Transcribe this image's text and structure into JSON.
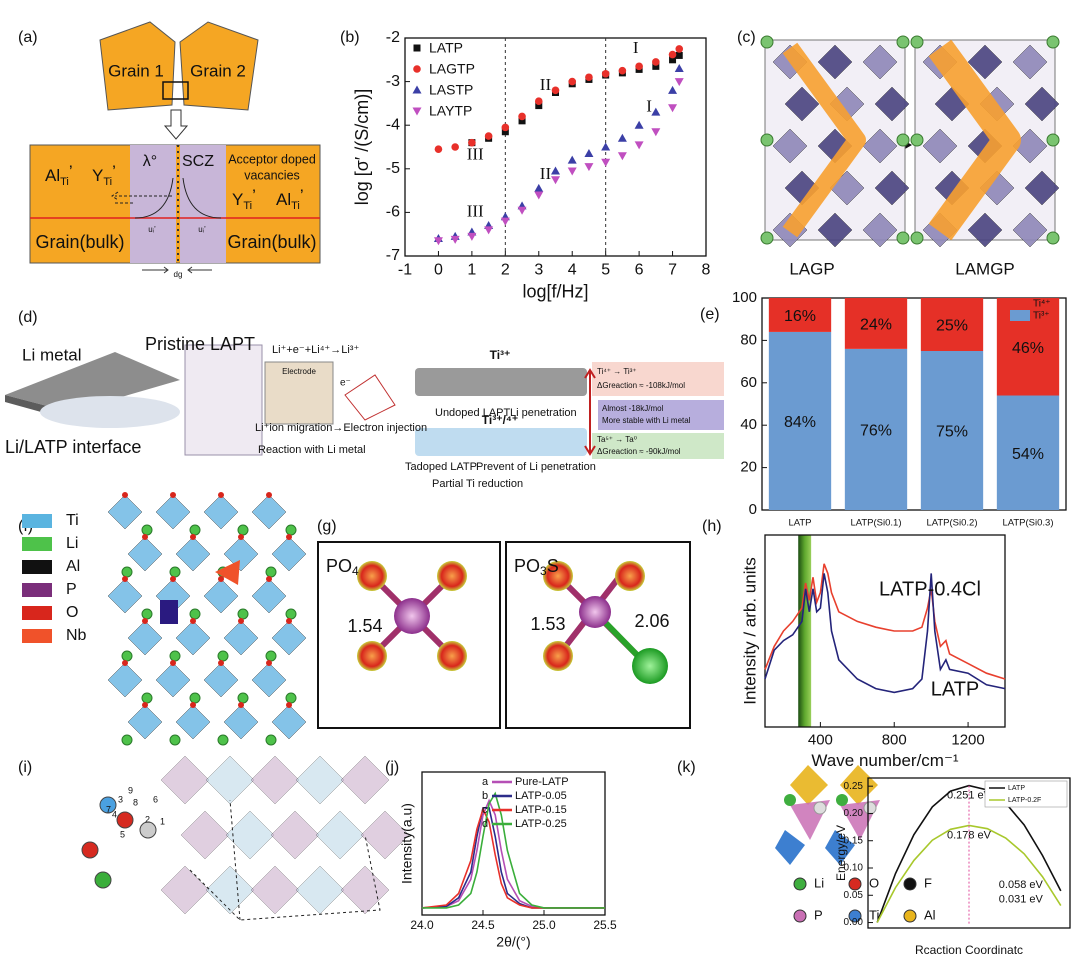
{
  "panel_labels": [
    "(a)",
    "(b)",
    "(c)",
    "(d)",
    "(e)",
    "(f)",
    "(g)",
    "(h)",
    "(i)",
    "(j)",
    "(k)"
  ],
  "panel_a": {
    "grain_1": "Grain 1",
    "grain_2": "Grain 2",
    "scz": "SCZ",
    "acceptor": [
      "Acceptor doped",
      "vacancies"
    ],
    "al_left": {
      "base": "Al",
      "sub": "Ti",
      "sup": "’"
    },
    "y_left": {
      "base": "Y",
      "sub": "Ti",
      "sup": "’"
    },
    "lambda": "λ°",
    "y_right": {
      "base": "Y",
      "sub": "Ti",
      "sup": "’"
    },
    "al_right": {
      "base": "Al",
      "sub": "Ti",
      "sup": "’"
    },
    "bulk_left": "Grain(bulk)",
    "bulk_right": "Grain(bulk)",
    "u_left": "uᵢ’",
    "u_right": "uᵢ’",
    "dg": "dg"
  },
  "panel_c": {
    "left": "LAGP",
    "right": "LAMGP"
  },
  "panel_d": {
    "li_metal": "Li metal",
    "pristine": "Pristine LAPT",
    "interface": "Li/LATP interface",
    "reaction": "Li⁺+e⁻+Li⁴⁺→Li³⁺",
    "electrode": "Electrode",
    "electron": "e⁻",
    "undoped": "Undoped LAPT",
    "li_penetration": "Li penetration",
    "migration": "Li⁺ion migration→Electron injection",
    "reaction_li": "Reaction with Li metal",
    "tadoped": "Tadoped LATP",
    "prevent": "Prevent of Li penetration",
    "partial": "Partial Ti reduction",
    "ti3": "Ti³⁺",
    "ti34": "Ti³⁺/⁴⁺",
    "box_top": [
      "Ti⁴⁺ → Ti³⁺",
      "ΔGreaction ≈ -108kJ/mol"
    ],
    "box_mid": [
      "Almost -18kJ/mol",
      "More stable with Li metal"
    ],
    "box_bottom": [
      "Ta⁵⁺ → Ta⁰",
      "ΔGreaction ≈ -90kJ/mol"
    ]
  },
  "panel_f": {
    "legend": [
      {
        "name": "Ti",
        "color": "#5ab4e0"
      },
      {
        "name": "Li",
        "color": "#4ec24a"
      },
      {
        "name": "Al",
        "color": "#111111"
      },
      {
        "name": "P",
        "color": "#7a2e7a"
      },
      {
        "name": "O",
        "color": "#d8261c"
      },
      {
        "name": "Nb",
        "color": "#f0522a"
      }
    ]
  },
  "panel_g": {
    "left": {
      "formula": "PO",
      "sub": "4",
      "bond": "1.54"
    },
    "right": {
      "formula": "PO",
      "sub": "3",
      "tail": "S",
      "bonds": [
        "1.53",
        "2.06"
      ]
    }
  },
  "panel_i": {
    "site_labels": [
      "1",
      "2",
      "3",
      "4",
      "5",
      "6",
      "7",
      "8",
      "9"
    ]
  },
  "panel_k": {
    "legend": [
      {
        "name": "Li",
        "color": "#3fae3f"
      },
      {
        "name": "O",
        "color": "#d62a20"
      },
      {
        "name": "F",
        "color": "#111111"
      },
      {
        "name": "P",
        "color": "#c96fb4"
      },
      {
        "name": "Ti",
        "color": "#3d7fd0"
      },
      {
        "name": "Al",
        "color": "#e8b41c"
      }
    ]
  },
  "chart_data": [
    {
      "type": "scatter",
      "x_label": "log[f/Hz]",
      "y_label": "log [σ′ /(S/cm)]",
      "x": [
        0,
        0.5,
        1,
        1.5,
        2,
        2.5,
        3,
        3.5,
        4,
        4.5,
        5,
        5.5,
        6,
        6.5,
        7,
        7.2
      ],
      "series": [
        {
          "name": "LATP",
          "color": "#111111",
          "marker": "square",
          "values": [
            null,
            null,
            -4.4,
            -4.3,
            -4.15,
            -3.9,
            -3.55,
            -3.25,
            -3.05,
            -2.95,
            -2.85,
            -2.8,
            -2.72,
            -2.65,
            -2.5,
            -2.4
          ]
        },
        {
          "name": "LAGTP",
          "color": "#e8302a",
          "marker": "circle",
          "values": [
            -4.55,
            -4.5,
            -4.4,
            -4.25,
            -4.05,
            -3.8,
            -3.45,
            -3.2,
            -3.0,
            -2.9,
            -2.82,
            -2.75,
            -2.65,
            -2.55,
            -2.38,
            -2.25
          ]
        },
        {
          "name": "LASTP",
          "color": "#3b3fa6",
          "marker": "triangle-up",
          "values": [
            -6.6,
            -6.55,
            -6.45,
            -6.3,
            -6.1,
            -5.85,
            -5.45,
            -5.05,
            -4.8,
            -4.65,
            -4.5,
            -4.3,
            -4.0,
            -3.7,
            -3.2,
            -2.7
          ]
        },
        {
          "name": "LAYTP",
          "color": "#c04fc0",
          "marker": "triangle-down",
          "values": [
            -6.65,
            -6.62,
            -6.55,
            -6.4,
            -6.2,
            -5.95,
            -5.6,
            -5.25,
            -5.05,
            -4.95,
            -4.85,
            -4.7,
            -4.45,
            -4.15,
            -3.6,
            -3.0
          ]
        }
      ],
      "xlim": [
        -1,
        8
      ],
      "xticks": [
        -1,
        0,
        1,
        2,
        3,
        4,
        5,
        6,
        7,
        8
      ],
      "ylim": [
        -7,
        -2
      ],
      "yticks": [
        -7,
        -6,
        -5,
        -4,
        -3,
        -2
      ],
      "vlines": [
        2,
        5
      ],
      "annotations": [
        {
          "text": "I",
          "x": 5.9,
          "y": -2.25
        },
        {
          "text": "II",
          "x": 3.2,
          "y": -3.1
        },
        {
          "text": "III",
          "x": 1.1,
          "y": -4.7
        },
        {
          "text": "I",
          "x": 6.3,
          "y": -3.6
        },
        {
          "text": "II",
          "x": 3.2,
          "y": -5.15
        },
        {
          "text": "III",
          "x": 1.1,
          "y": -6.0
        }
      ],
      "legend": "upper left"
    },
    {
      "type": "bar",
      "stacked": true,
      "categories": [
        "LATP",
        "LATP(Si0.1)",
        "LATP(Si0.2)",
        "LATP(Si0.3)"
      ],
      "series": [
        {
          "name": "Ti⁴⁺",
          "color": "#e53027",
          "values": [
            16,
            24,
            25,
            46
          ],
          "value_labels": [
            "16%",
            "24%",
            "25%",
            "46%"
          ]
        },
        {
          "name": "Ti³⁺",
          "color": "#6b9bd1",
          "values": [
            84,
            76,
            75,
            54
          ],
          "value_labels": [
            "84%",
            "76%",
            "75%",
            "54%"
          ]
        }
      ],
      "ylim": [
        0,
        100
      ],
      "yticks": [
        0,
        20,
        40,
        60,
        80,
        100
      ],
      "legend": "upper right"
    },
    {
      "type": "line",
      "x_label": "Wave number/cm⁻¹",
      "y_label": "Intensity / arb. units",
      "x": [
        100,
        150,
        200,
        250,
        300,
        320,
        340,
        360,
        380,
        400,
        420,
        440,
        460,
        500,
        600,
        700,
        800,
        900,
        950,
        980,
        1000,
        1020,
        1050,
        1080,
        1100,
        1200,
        1300,
        1400
      ],
      "series": [
        {
          "name": "LATP-0.4Cl",
          "color": "#e8402e",
          "values": [
            0.3,
            0.42,
            0.5,
            0.55,
            0.62,
            0.75,
            0.66,
            0.78,
            0.65,
            0.7,
            0.85,
            0.8,
            0.7,
            0.6,
            0.55,
            0.52,
            0.5,
            0.5,
            0.52,
            0.62,
            0.72,
            0.55,
            0.42,
            0.45,
            0.38,
            0.33,
            0.28,
            0.25
          ]
        },
        {
          "name": "LATP",
          "color": "#24247a",
          "values": [
            0.25,
            0.4,
            0.45,
            0.48,
            0.55,
            0.72,
            0.6,
            0.72,
            0.6,
            0.62,
            0.8,
            0.7,
            0.5,
            0.35,
            0.25,
            0.2,
            0.18,
            0.2,
            0.25,
            0.5,
            0.8,
            0.5,
            0.3,
            0.35,
            0.3,
            0.28,
            0.22,
            0.2
          ]
        }
      ],
      "xlim": [
        100,
        1400
      ],
      "xticks": [
        400,
        800,
        1200
      ],
      "ylim": [
        0,
        1
      ],
      "band": [
        280,
        350
      ],
      "legend": "inline"
    },
    {
      "type": "line",
      "x_label": "2θ/(°)",
      "y_label": "Intensity(a.u)",
      "x": [
        24.0,
        24.2,
        24.3,
        24.4,
        24.45,
        24.5,
        24.55,
        24.6,
        24.65,
        24.7,
        24.8,
        24.9,
        25.0,
        25.5
      ],
      "series": [
        {
          "name": "Pure-LATP",
          "letter": "a",
          "color": "#b54fb5",
          "values": [
            0.05,
            0.06,
            0.1,
            0.25,
            0.45,
            0.7,
            0.8,
            0.7,
            0.45,
            0.25,
            0.1,
            0.06,
            0.05,
            0.05
          ]
        },
        {
          "name": "LATP-0.05",
          "letter": "b",
          "color": "#2c2c8a",
          "values": [
            0.05,
            0.06,
            0.12,
            0.3,
            0.55,
            0.75,
            0.75,
            0.55,
            0.3,
            0.15,
            0.08,
            0.05,
            0.05,
            0.05
          ]
        },
        {
          "name": "LATP-0.15",
          "letter": "c",
          "color": "#e8302a",
          "values": [
            0.05,
            0.07,
            0.15,
            0.38,
            0.6,
            0.74,
            0.65,
            0.42,
            0.22,
            0.12,
            0.07,
            0.05,
            0.05,
            0.05
          ]
        },
        {
          "name": "LATP-0.25",
          "letter": "d",
          "color": "#3aae3a",
          "values": [
            0.05,
            0.05,
            0.07,
            0.15,
            0.3,
            0.55,
            0.78,
            0.85,
            0.7,
            0.45,
            0.15,
            0.07,
            0.05,
            0.05
          ]
        }
      ],
      "xlim": [
        24.0,
        25.5
      ],
      "xticks": [
        {
          "value": 24.0,
          "label": "24.0"
        },
        {
          "value": 24.5,
          "label": "24.5"
        },
        {
          "value": 25.0,
          "label": "25.0"
        },
        {
          "value": 25.5,
          "label": "25.5"
        }
      ],
      "ylim": [
        0,
        1
      ],
      "legend": "upper right"
    },
    {
      "type": "line",
      "x_label": "Rcaction Coordinatc",
      "y_label": "Energy/eV",
      "x": [
        0,
        0.1,
        0.2,
        0.3,
        0.4,
        0.5,
        0.6,
        0.7,
        0.8,
        0.9,
        1.0
      ],
      "series": [
        {
          "name": "LATP",
          "color": "#111111",
          "values": [
            0,
            0.09,
            0.161,
            0.212,
            0.241,
            0.251,
            0.243,
            0.219,
            0.179,
            0.123,
            0.058
          ]
        },
        {
          "name": "LATP-0.2F",
          "color": "#a8c82c",
          "values": [
            0,
            0.064,
            0.114,
            0.151,
            0.171,
            0.178,
            0.172,
            0.155,
            0.126,
            0.084,
            0.031
          ]
        }
      ],
      "xlim": [
        -0.05,
        1.05
      ],
      "ylim": [
        -0.01,
        0.265
      ],
      "yticks": [
        {
          "value": 0,
          "label": "0.00"
        },
        0.05,
        {
          "value": 0.1,
          "label": "0.10"
        },
        0.15,
        {
          "value": 0.2,
          "label": "0.20"
        },
        0.25
      ],
      "annotations": [
        {
          "text": "0.251 eV",
          "x": 0.5,
          "y": 0.251,
          "color": "#111111"
        },
        {
          "text": "0.178 eV",
          "x": 0.5,
          "y": 0.178,
          "color": "#a8c82c"
        },
        {
          "text": "0.058 eV",
          "x": 1.0,
          "y": 0.058,
          "color": "#111111"
        },
        {
          "text": "0.031 eV",
          "x": 1.0,
          "y": 0.031,
          "color": "#a8c82c"
        }
      ],
      "legend": "upper right"
    }
  ]
}
